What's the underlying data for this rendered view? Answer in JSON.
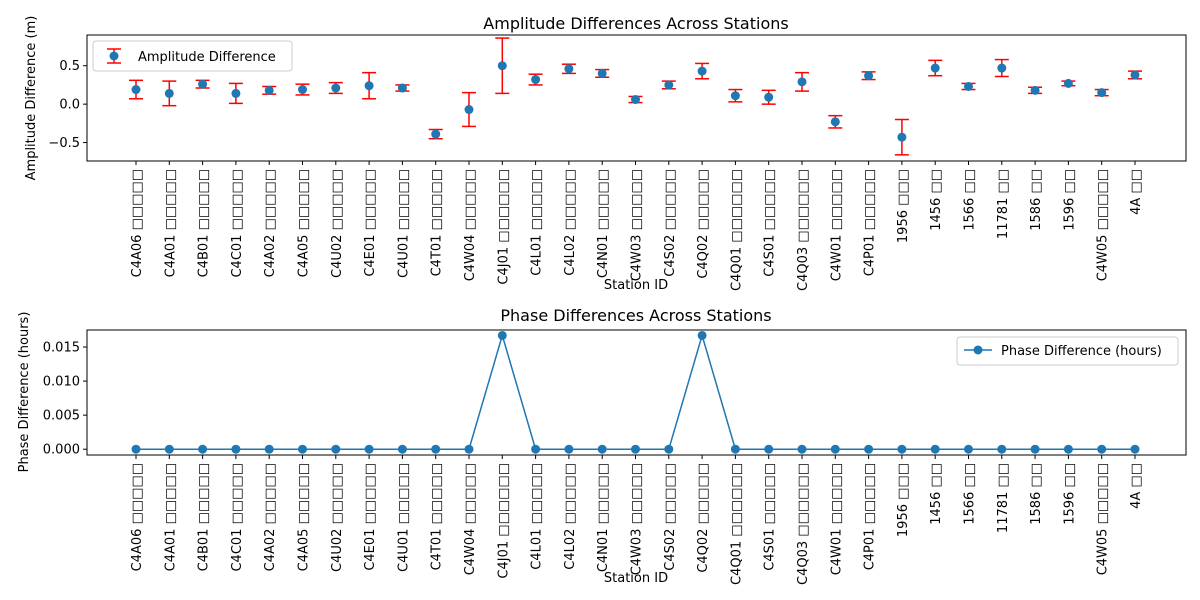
{
  "colors": {
    "marker": "#1f77b4",
    "errorbar": "#ff0000",
    "line": "#1f77b4"
  },
  "chart_data": [
    {
      "type": "errorbar",
      "title": "Amplitude Differences Across Stations",
      "xlabel": "Station ID",
      "ylabel": "Amplitude Difference (m)",
      "ylim": [
        -0.74,
        0.9
      ],
      "yticks": [
        -0.5,
        0.0,
        0.5
      ],
      "ytick_labels": [
        "−0.5",
        "0.0",
        "0.5"
      ],
      "grid": false,
      "legend": "upper left",
      "categories": [
        "C4A06 □□□□□",
        "C4A01 □□□□□",
        "C4B01 □□□□□",
        "C4C01 □□□□□",
        "C4A02 □□□□□",
        "C4A05 □□□□□",
        "C4U02 □□□□□",
        "C4E01 □□□□□",
        "C4U01 □□□□□",
        "C4T01 □□□□□",
        "C4W04 □□□□□",
        "C4J01 □□□□□□",
        "C4L01 □□□□□",
        "C4L02 □□□□□",
        "C4N01 □□□□□",
        "C4W03 □□□□□",
        "C4S02 □□□□□",
        "C4Q02 □□□□□",
        "C4Q01 □□□□□□",
        "C4S01 □□□□□",
        "C4Q03 □□□□□□",
        "C4W01 □□□□□",
        "C4P01 □□□□□",
        "1956 □□□",
        "1456 □□",
        "1566 □□",
        "11781 □□",
        "1586 □□",
        "1596 □□",
        "C4W05 □□□□□",
        "4A □□"
      ],
      "series": [
        {
          "name": "Amplitude Difference",
          "values": [
            0.19,
            0.14,
            0.26,
            0.14,
            0.18,
            0.19,
            0.21,
            0.24,
            0.21,
            -0.39,
            -0.07,
            0.5,
            0.32,
            0.46,
            0.4,
            0.06,
            0.25,
            0.43,
            0.11,
            0.09,
            0.29,
            -0.23,
            0.37,
            -0.43,
            0.47,
            0.23,
            0.47,
            0.18,
            0.27,
            0.15,
            0.38
          ],
          "errors": [
            0.12,
            0.16,
            0.05,
            0.13,
            0.05,
            0.07,
            0.07,
            0.17,
            0.04,
            0.06,
            0.22,
            0.36,
            0.07,
            0.06,
            0.05,
            0.04,
            0.05,
            0.1,
            0.08,
            0.09,
            0.12,
            0.08,
            0.05,
            0.23,
            0.1,
            0.04,
            0.11,
            0.04,
            0.03,
            0.04,
            0.05
          ]
        }
      ]
    },
    {
      "type": "line",
      "title": "Phase Differences Across Stations",
      "xlabel": "Station ID",
      "ylabel": "Phase Difference (hours)",
      "ylim": [
        -0.00085,
        0.0175
      ],
      "yticks": [
        0.0,
        0.005,
        0.01,
        0.015
      ],
      "ytick_labels": [
        "0.000",
        "0.005",
        "0.010",
        "0.015"
      ],
      "grid": false,
      "legend": "upper right",
      "categories": [
        "C4A06 □□□□□",
        "C4A01 □□□□□",
        "C4B01 □□□□□",
        "C4C01 □□□□□",
        "C4A02 □□□□□",
        "C4A05 □□□□□",
        "C4U02 □□□□□",
        "C4E01 □□□□□",
        "C4U01 □□□□□",
        "C4T01 □□□□□",
        "C4W04 □□□□□",
        "C4J01 □□□□□□",
        "C4L01 □□□□□",
        "C4L02 □□□□□",
        "C4N01 □□□□□",
        "C4W03 □□□□□",
        "C4S02 □□□□□",
        "C4Q02 □□□□□",
        "C4Q01 □□□□□□",
        "C4S01 □□□□□",
        "C4Q03 □□□□□□",
        "C4W01 □□□□□",
        "C4P01 □□□□□",
        "1956 □□□",
        "1456 □□",
        "1566 □□",
        "11781 □□",
        "1586 □□",
        "1596 □□",
        "C4W05 □□□□□",
        "4A □□"
      ],
      "series": [
        {
          "name": "Phase Difference (hours)",
          "values": [
            0,
            0,
            0,
            0,
            0,
            0,
            0,
            0,
            0,
            0,
            0,
            0.0167,
            0,
            0,
            0,
            0,
            0,
            0.0167,
            0,
            0,
            0,
            0,
            0,
            0,
            0,
            0,
            0,
            0,
            0,
            0,
            0
          ]
        }
      ]
    }
  ]
}
